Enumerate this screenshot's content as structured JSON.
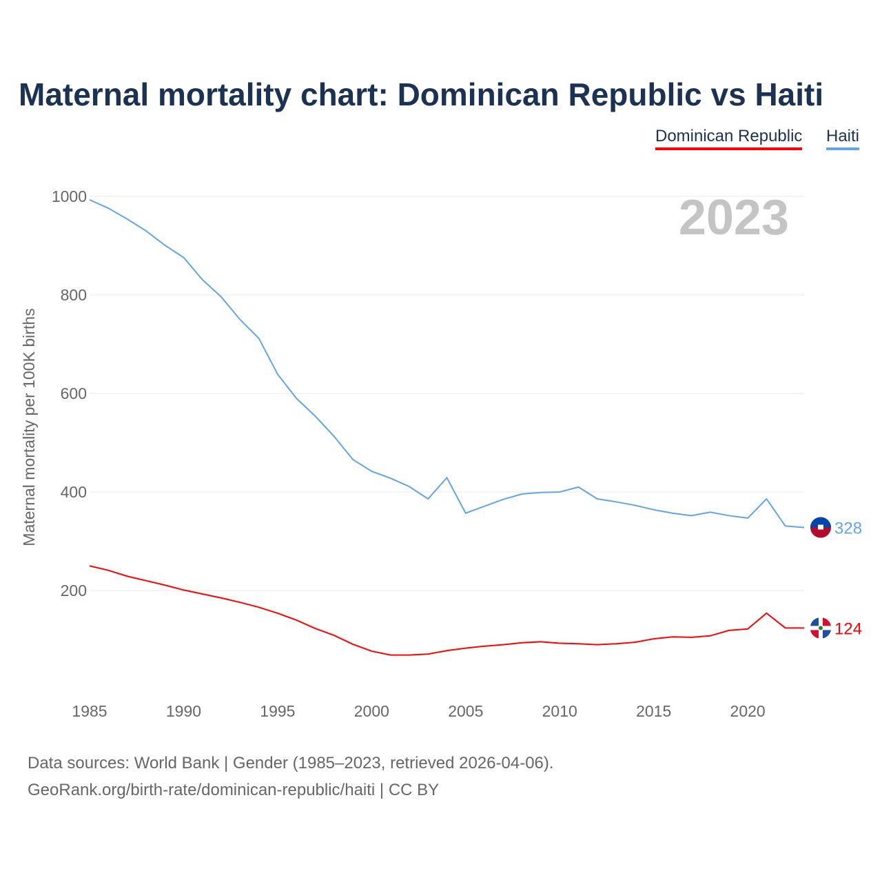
{
  "chart_data": {
    "type": "line",
    "title": "Maternal mortality chart: Dominican Republic vs Haiti",
    "ylabel": "Maternal mortality per 100K births",
    "xlabel": "",
    "year_label": "2023",
    "ylim": [
      0,
      1000
    ],
    "xlim": [
      1985,
      2023
    ],
    "yticks": [
      200,
      400,
      600,
      800,
      1000
    ],
    "xticks": [
      1985,
      1990,
      1995,
      2000,
      2005,
      2010,
      2015,
      2020
    ],
    "grid": true,
    "legend_position": "top-right",
    "x": [
      1985,
      1986,
      1987,
      1988,
      1989,
      1990,
      1991,
      1992,
      1993,
      1994,
      1995,
      1996,
      1997,
      1998,
      1999,
      2000,
      2001,
      2002,
      2003,
      2004,
      2005,
      2006,
      2007,
      2008,
      2009,
      2010,
      2011,
      2012,
      2013,
      2014,
      2015,
      2016,
      2017,
      2018,
      2019,
      2020,
      2021,
      2022,
      2023
    ],
    "series": [
      {
        "name": "Dominican Republic",
        "color": "#ff0000",
        "end_label": "124",
        "values": [
          250,
          241,
          229,
          220,
          211,
          201,
          193,
          185,
          176,
          166,
          154,
          140,
          123,
          109,
          91,
          77,
          69,
          69,
          71,
          78,
          83,
          87,
          90,
          94,
          96,
          93,
          92,
          90,
          92,
          95,
          102,
          106,
          105,
          108,
          119,
          122,
          154,
          124,
          124
        ]
      },
      {
        "name": "Haiti",
        "color": "#60a5e8",
        "end_label": "328",
        "values": [
          993,
          976,
          954,
          930,
          901,
          876,
          831,
          796,
          750,
          712,
          639,
          590,
          554,
          513,
          466,
          442,
          428,
          411,
          386,
          429,
          357,
          371,
          385,
          396,
          399,
          400,
          410,
          386,
          380,
          373,
          364,
          357,
          352,
          359,
          352,
          347,
          386,
          331,
          328
        ]
      }
    ]
  },
  "footer": {
    "line1": "Data sources: World Bank | Gender (1985–2023, retrieved 2026-04-06).",
    "line2": "GeoRank.org/birth-rate/dominican-republic/haiti | CC BY"
  }
}
